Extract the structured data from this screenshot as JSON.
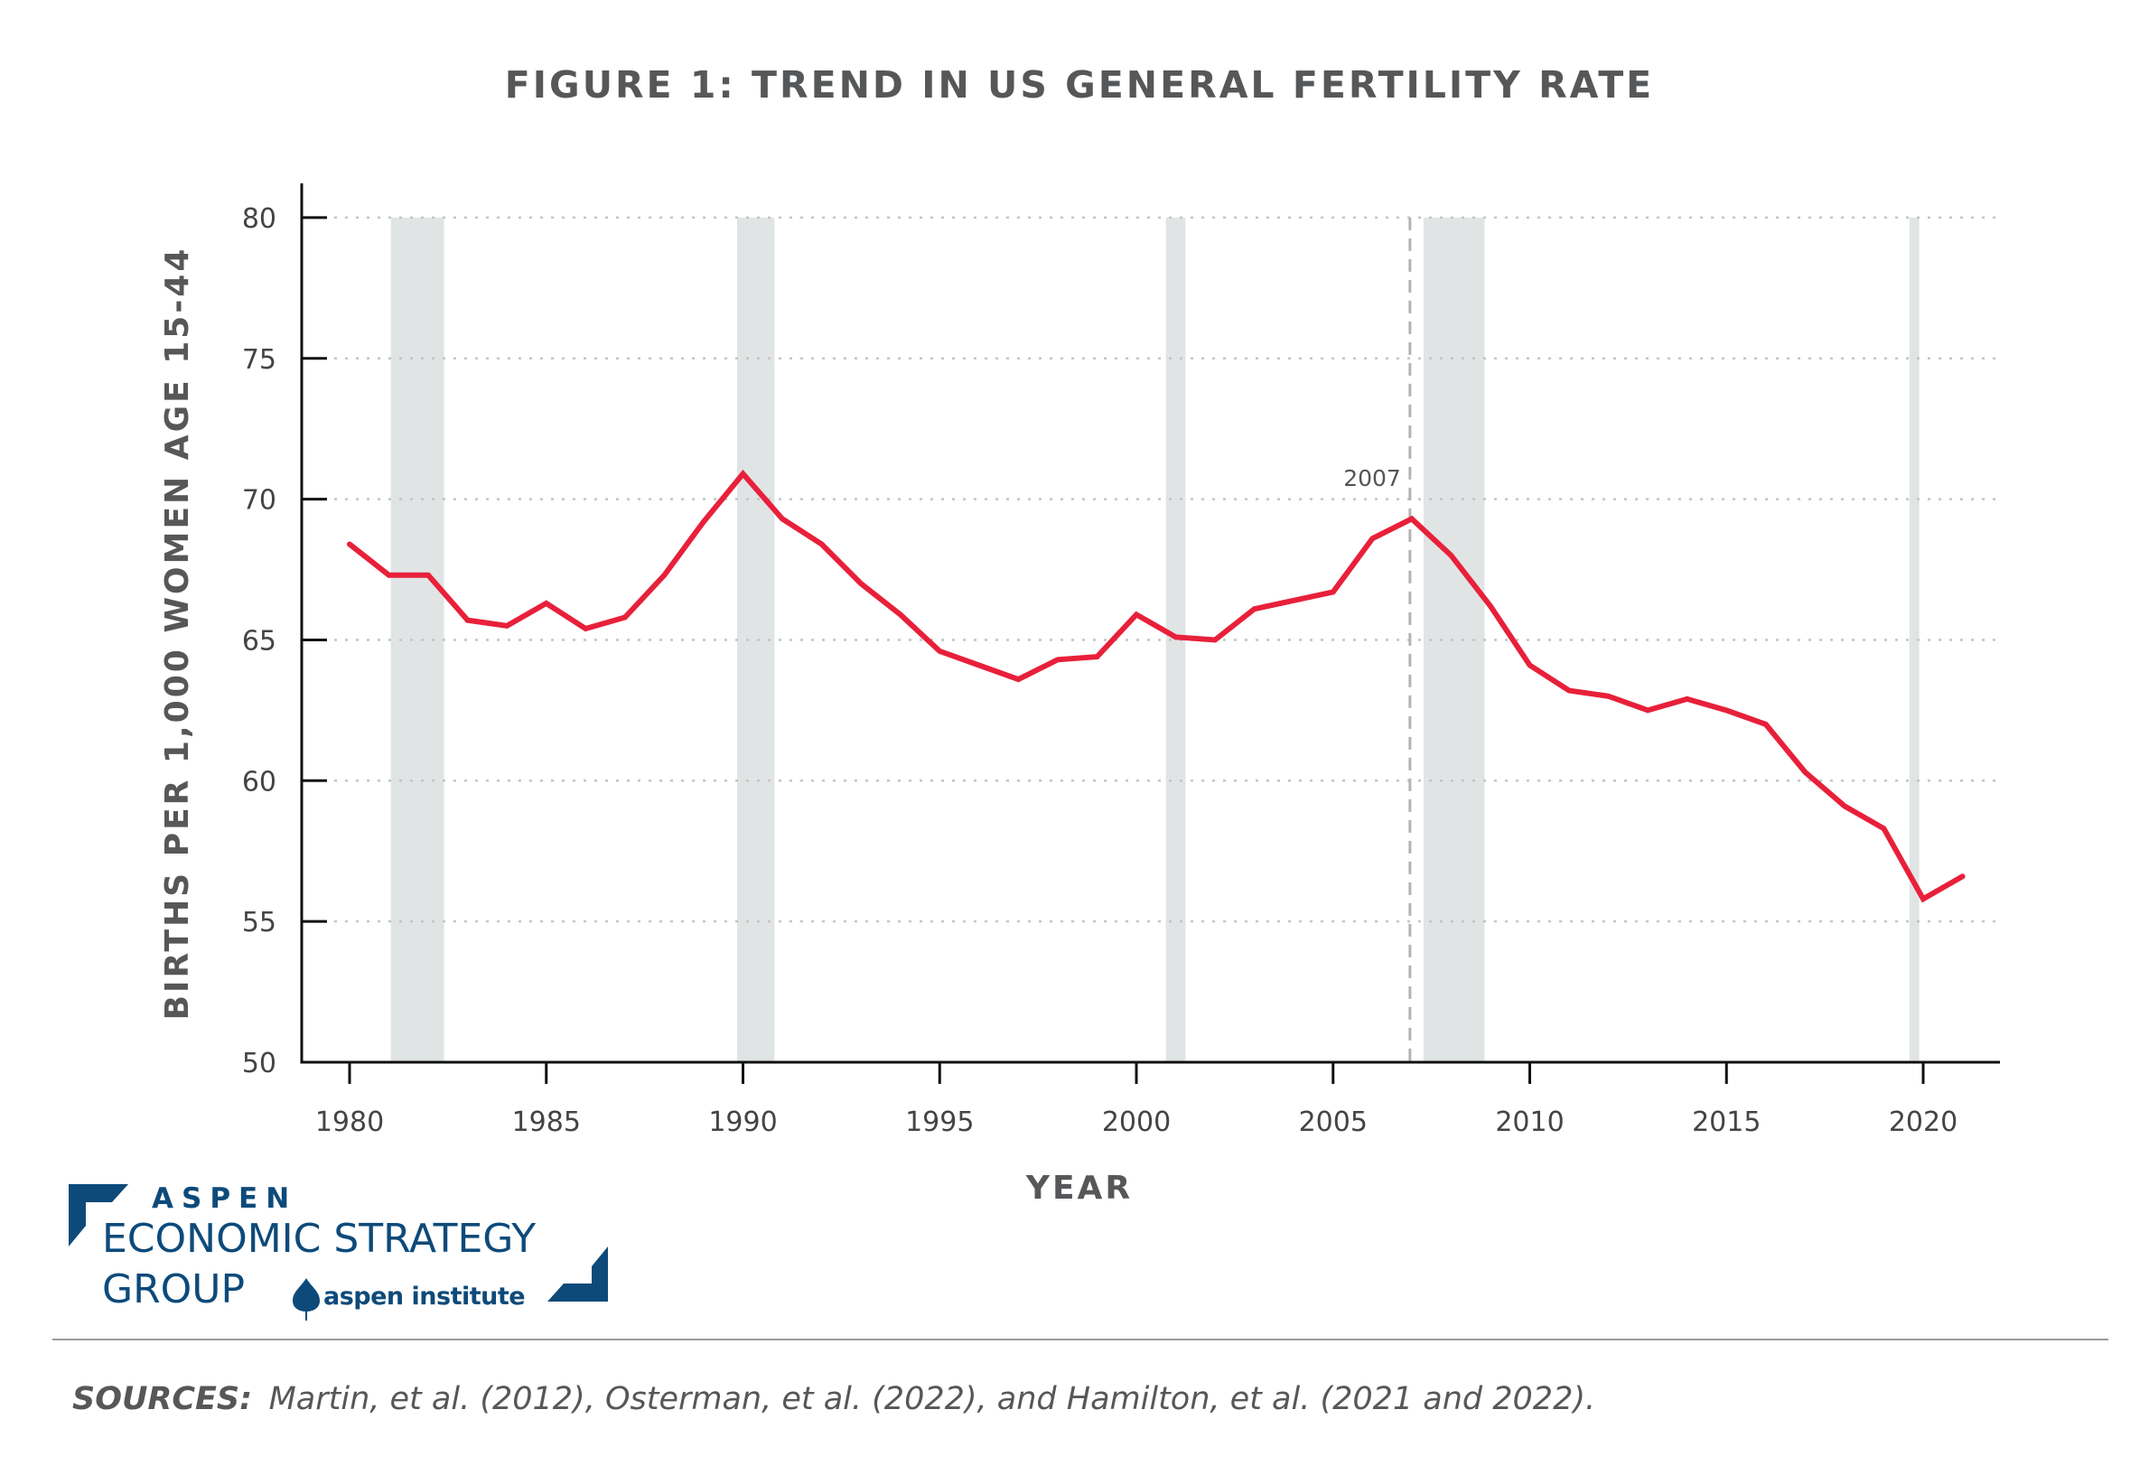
{
  "chart_data": {
    "type": "line",
    "title": "FIGURE 1: TREND IN US GENERAL FERTILITY RATE",
    "xlabel": "YEAR",
    "ylabel": "BIRTHS PER 1,000 WOMEN AGE 15-44",
    "xlim": [
      1980,
      2021
    ],
    "ylim": [
      50,
      80
    ],
    "x_ticks": [
      1980,
      1985,
      1990,
      1995,
      2000,
      2005,
      2010,
      2015,
      2020
    ],
    "y_ticks": [
      50,
      55,
      60,
      65,
      70,
      75,
      80
    ],
    "grid": "horizontal dotted",
    "series": [
      {
        "name": "General fertility rate",
        "color": "#e8203a",
        "x": [
          1980,
          1981,
          1982,
          1983,
          1984,
          1985,
          1986,
          1987,
          1988,
          1989,
          1990,
          1991,
          1992,
          1993,
          1994,
          1995,
          1996,
          1997,
          1998,
          1999,
          2000,
          2001,
          2002,
          2003,
          2004,
          2005,
          2006,
          2007,
          2008,
          2009,
          2010,
          2011,
          2012,
          2013,
          2014,
          2015,
          2016,
          2017,
          2018,
          2019,
          2020,
          2021
        ],
        "values": [
          68.4,
          67.3,
          67.3,
          65.7,
          65.5,
          66.3,
          65.4,
          65.8,
          67.3,
          69.2,
          70.9,
          69.3,
          68.4,
          67.0,
          65.9,
          64.6,
          64.1,
          63.6,
          64.3,
          64.4,
          65.9,
          65.1,
          65.0,
          66.1,
          66.4,
          66.7,
          68.6,
          69.3,
          68.0,
          66.2,
          64.1,
          63.2,
          63.0,
          62.5,
          62.9,
          62.5,
          62.0,
          60.3,
          59.1,
          58.3,
          55.8,
          56.6
        ]
      }
    ],
    "recession_bands": [
      [
        1981.05,
        1982.4
      ],
      [
        1989.85,
        1990.8
      ],
      [
        2000.75,
        2001.25
      ],
      [
        2007.3,
        2008.85
      ],
      [
        2019.65,
        2019.9
      ]
    ],
    "band_color": "#e1e4e5",
    "reference_line": {
      "x": 2007,
      "label": "2007"
    }
  },
  "footer": {
    "logo": {
      "aspen": "ASPEN",
      "line1": "ECONOMIC STRATEGY",
      "line2": "GROUP",
      "institute": "aspen institute",
      "color": "#0d4a7a"
    },
    "sources_label": "SOURCES:",
    "sources_text": "Martin, et al. (2012), Osterman, et al. (2022), and Hamilton, et al. (2021 and 2022)."
  }
}
